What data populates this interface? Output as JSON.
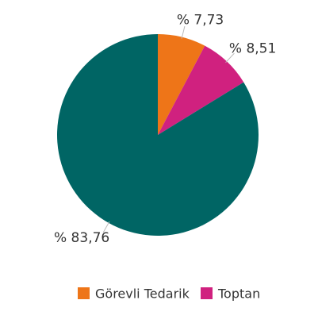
{
  "chart_data": {
    "type": "pie",
    "categories": [
      "Görevli Tedarik",
      "Toptan",
      null
    ],
    "values": [
      7.73,
      8.51,
      83.76
    ],
    "value_labels": [
      "% 7,73",
      "% 8,51",
      "% 83,76"
    ],
    "colors": [
      "#ee7518",
      "#d0217f",
      "#006564"
    ]
  }
}
